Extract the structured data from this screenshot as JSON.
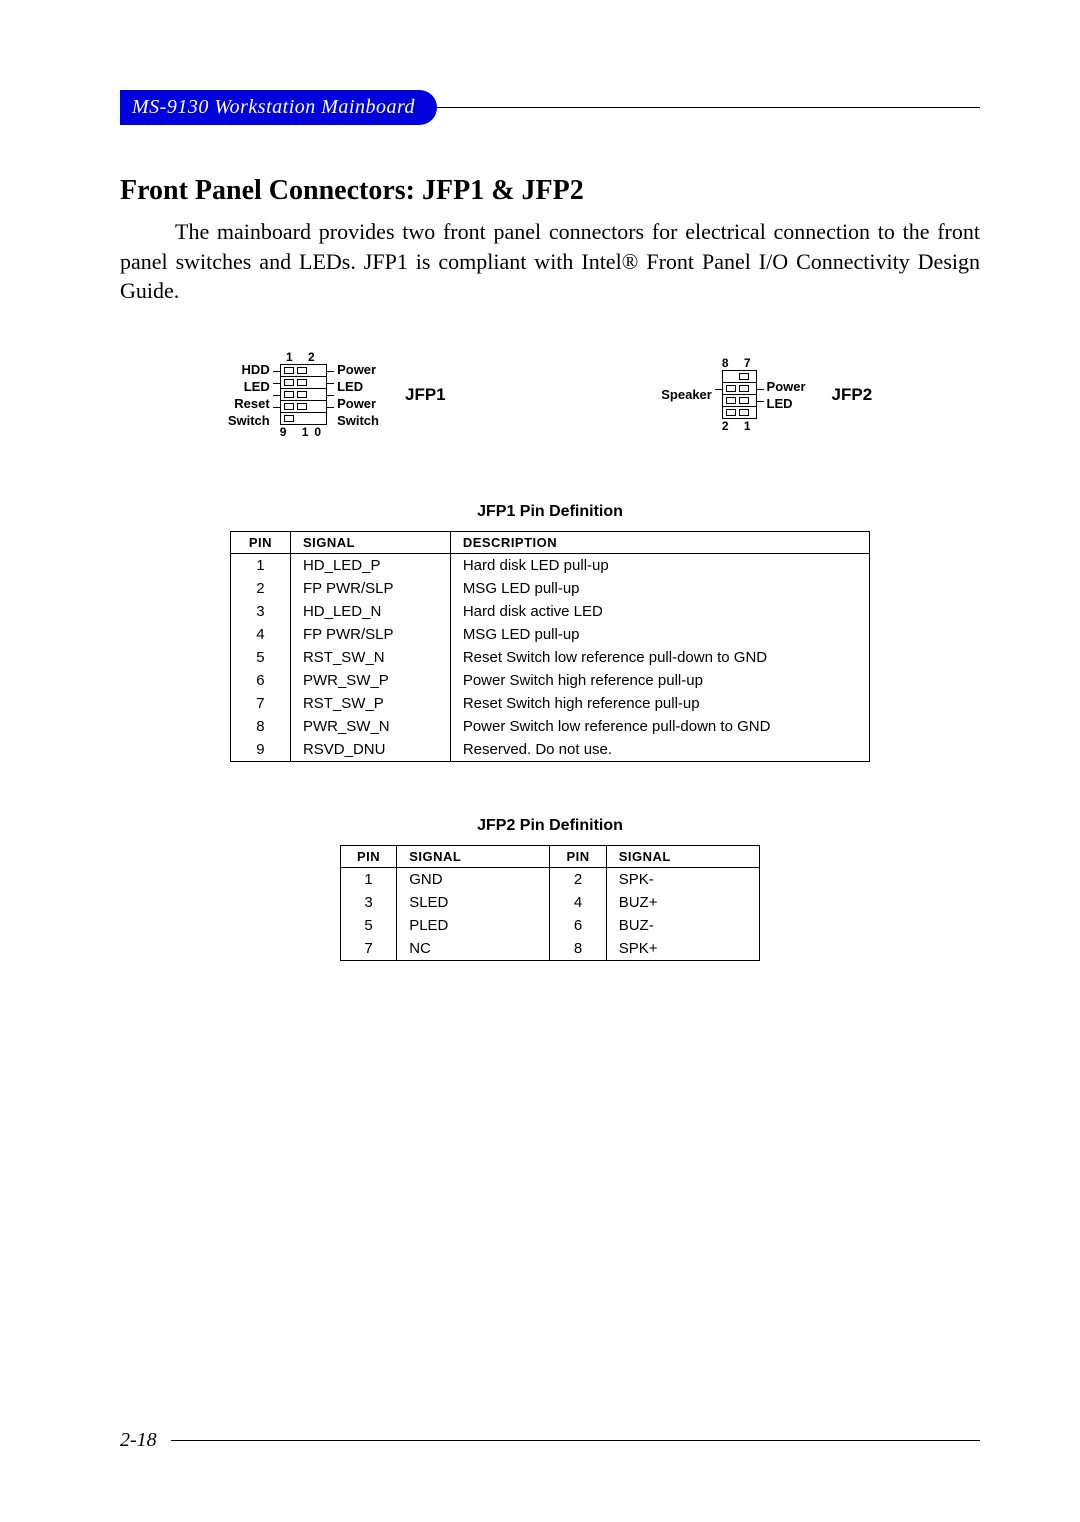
{
  "header": {
    "badge": "MS-9130 Workstation Mainboard"
  },
  "section": {
    "title": "Front Panel Connectors: JFP1 & JFP2",
    "paragraph": "The mainboard provides two front panel connectors for electrical connection to the front panel switches and LEDs. JFP1 is compliant with Intel® Front Panel I/O Connectivity Design Guide."
  },
  "diagrams": {
    "jfp1": {
      "name": "JFP1",
      "top_nums": "1 2",
      "bot_nums": "9 10",
      "left_labels": [
        "HDD",
        "LED",
        "Reset",
        "Switch"
      ],
      "right_labels": [
        "Power",
        "LED",
        "Power",
        "Switch"
      ]
    },
    "jfp2": {
      "name": "JFP2",
      "top_nums": "8 7",
      "bot_nums": "2 1",
      "left_label": "Speaker",
      "right_labels": [
        "Power",
        "LED"
      ]
    }
  },
  "table1": {
    "title": "JFP1 Pin Definition",
    "headers": [
      "PIN",
      "SIGNAL",
      "DESCRIPTION"
    ],
    "rows": [
      [
        "1",
        "HD_LED_P",
        "Hard disk LED pull-up"
      ],
      [
        "2",
        "FP PWR/SLP",
        "MSG LED pull-up"
      ],
      [
        "3",
        "HD_LED_N",
        "Hard disk active LED"
      ],
      [
        "4",
        "FP PWR/SLP",
        "MSG LED pull-up"
      ],
      [
        "5",
        "RST_SW_N",
        "Reset Switch low reference pull-down to GND"
      ],
      [
        "6",
        "PWR_SW_P",
        "Power Switch high reference pull-up"
      ],
      [
        "7",
        "RST_SW_P",
        "Reset Switch high reference pull-up"
      ],
      [
        "8",
        "PWR_SW_N",
        "Power Switch low reference pull-down to GND"
      ],
      [
        "9",
        "RSVD_DNU",
        "Reserved. Do not use."
      ]
    ]
  },
  "table2": {
    "title": "JFP2 Pin Definition",
    "headers": [
      "PIN",
      "SIGNAL",
      "PIN",
      "SIGNAL"
    ],
    "rows": [
      [
        "1",
        "GND",
        "2",
        "SPK-"
      ],
      [
        "3",
        "SLED",
        "4",
        "BUZ+"
      ],
      [
        "5",
        "PLED",
        "6",
        "BUZ-"
      ],
      [
        "7",
        "NC",
        "8",
        "SPK+"
      ]
    ]
  },
  "footer": {
    "page": "2-18"
  }
}
